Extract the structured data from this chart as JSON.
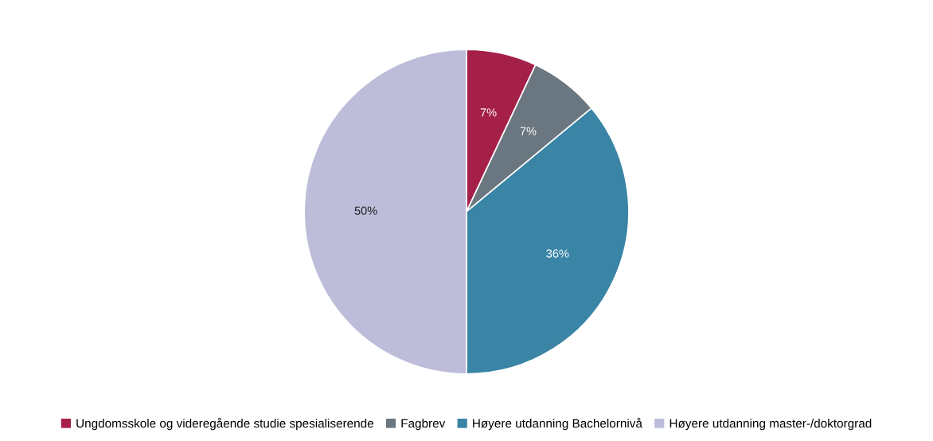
{
  "chart_data": {
    "type": "pie",
    "categories": [
      "Ungdomsskole og videregående studie spesialiserende",
      "Fagbrev",
      "Høyere utdanning Bachelornivå",
      "Høyere utdanning master-/doktorgrad"
    ],
    "values": [
      7,
      7,
      36,
      50
    ],
    "colors": [
      "#a52049",
      "#6b7780",
      "#3a84a6",
      "#bdbdda"
    ],
    "value_labels": [
      "7%",
      "7%",
      "36%",
      "50%"
    ],
    "legend": "bottom"
  }
}
